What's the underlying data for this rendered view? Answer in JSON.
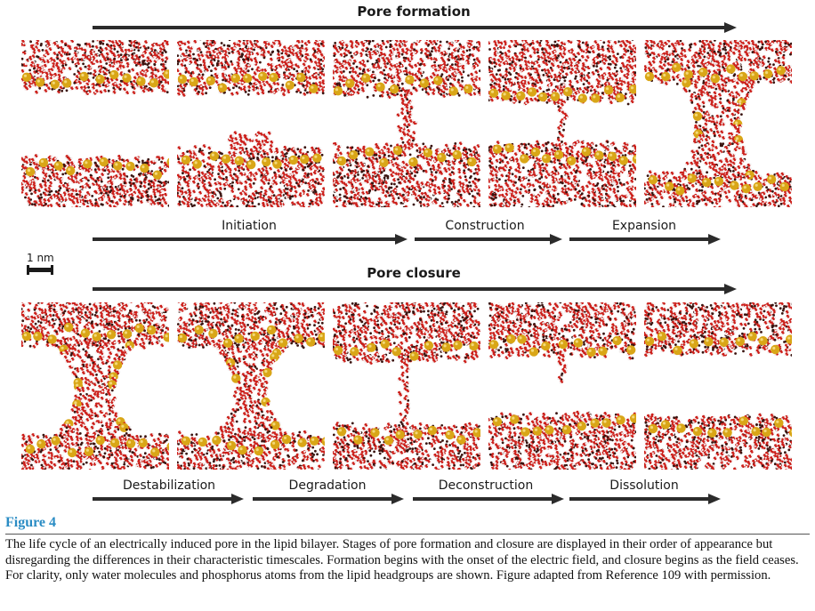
{
  "formation": {
    "title": "Pore formation",
    "stages": [
      "Initiation",
      "Construction",
      "Expansion"
    ]
  },
  "closure": {
    "title": "Pore closure",
    "stages": [
      "Destabilization",
      "Degradation",
      "Deconstruction",
      "Dissolution"
    ]
  },
  "scale_bar": {
    "label": "1 nm"
  },
  "figure": {
    "label": "Figure 4",
    "caption": "The life cycle of an electrically induced pore in the lipid bilayer. Stages of pore formation and closure are displayed in their order of appearance but disregarding the differences in their characteristic timescales. Formation begins with the onset of the electric field, and closure begins as the field ceases. For clarity, only water molecules and phosphorus atoms from the lipid headgroups are shown. Figure adapted from Reference 109 with permission."
  },
  "colors": {
    "water_oxygen": "#cc1f1a",
    "water_hydrogen": "#f2eeee",
    "phosphorus": "#d9a617",
    "background_particles": "#3a1410",
    "figure_label": "#2a8cc4"
  },
  "panels": {
    "formation": [
      "separated-layers",
      "initial-bulge",
      "water-column-forming",
      "narrow-water-bridge",
      "expanded-pore"
    ],
    "closure": [
      "wide-pore",
      "constricting-pore",
      "thinning-bridge",
      "broken-bridge",
      "resealed-layers"
    ]
  }
}
